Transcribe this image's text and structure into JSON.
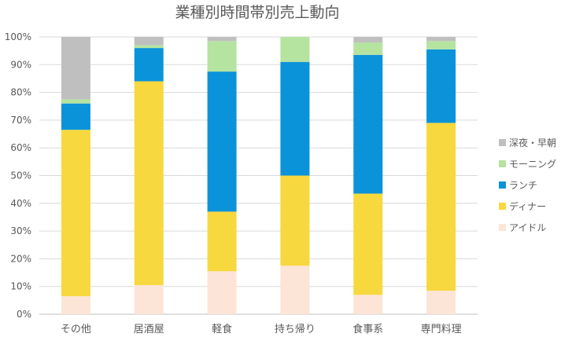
{
  "chart_data": {
    "type": "bar",
    "stacked": true,
    "percent": true,
    "title": "業種別時間帯別売上動向",
    "xlabel": "",
    "ylabel": "",
    "ylim": [
      0,
      100
    ],
    "yticks": [
      "0%",
      "10%",
      "20%",
      "30%",
      "40%",
      "50%",
      "60%",
      "70%",
      "80%",
      "90%",
      "100%"
    ],
    "categories": [
      "その他",
      "居酒屋",
      "軽食",
      "持ち帰り",
      "食事系",
      "専門料理"
    ],
    "legend_position": "right",
    "grid": true,
    "series": [
      {
        "name": "アイドル",
        "color": "#fce4d6",
        "values": [
          6.5,
          10.5,
          15.5,
          17.5,
          7,
          8.5
        ]
      },
      {
        "name": "ディナー",
        "color": "#f7d83e",
        "values": [
          60,
          73.5,
          21.5,
          32.5,
          36.5,
          60.5
        ]
      },
      {
        "name": "ランチ",
        "color": "#0b93d9",
        "values": [
          9.5,
          12,
          50.5,
          41,
          50,
          26.5
        ]
      },
      {
        "name": "モーニング",
        "color": "#b5e3a0",
        "values": [
          1.5,
          1,
          11,
          9,
          4.5,
          3
        ]
      },
      {
        "name": "深夜・早朝",
        "color": "#bfbfbf",
        "values": [
          22.5,
          3,
          1.5,
          0,
          2,
          1.5
        ]
      }
    ]
  }
}
